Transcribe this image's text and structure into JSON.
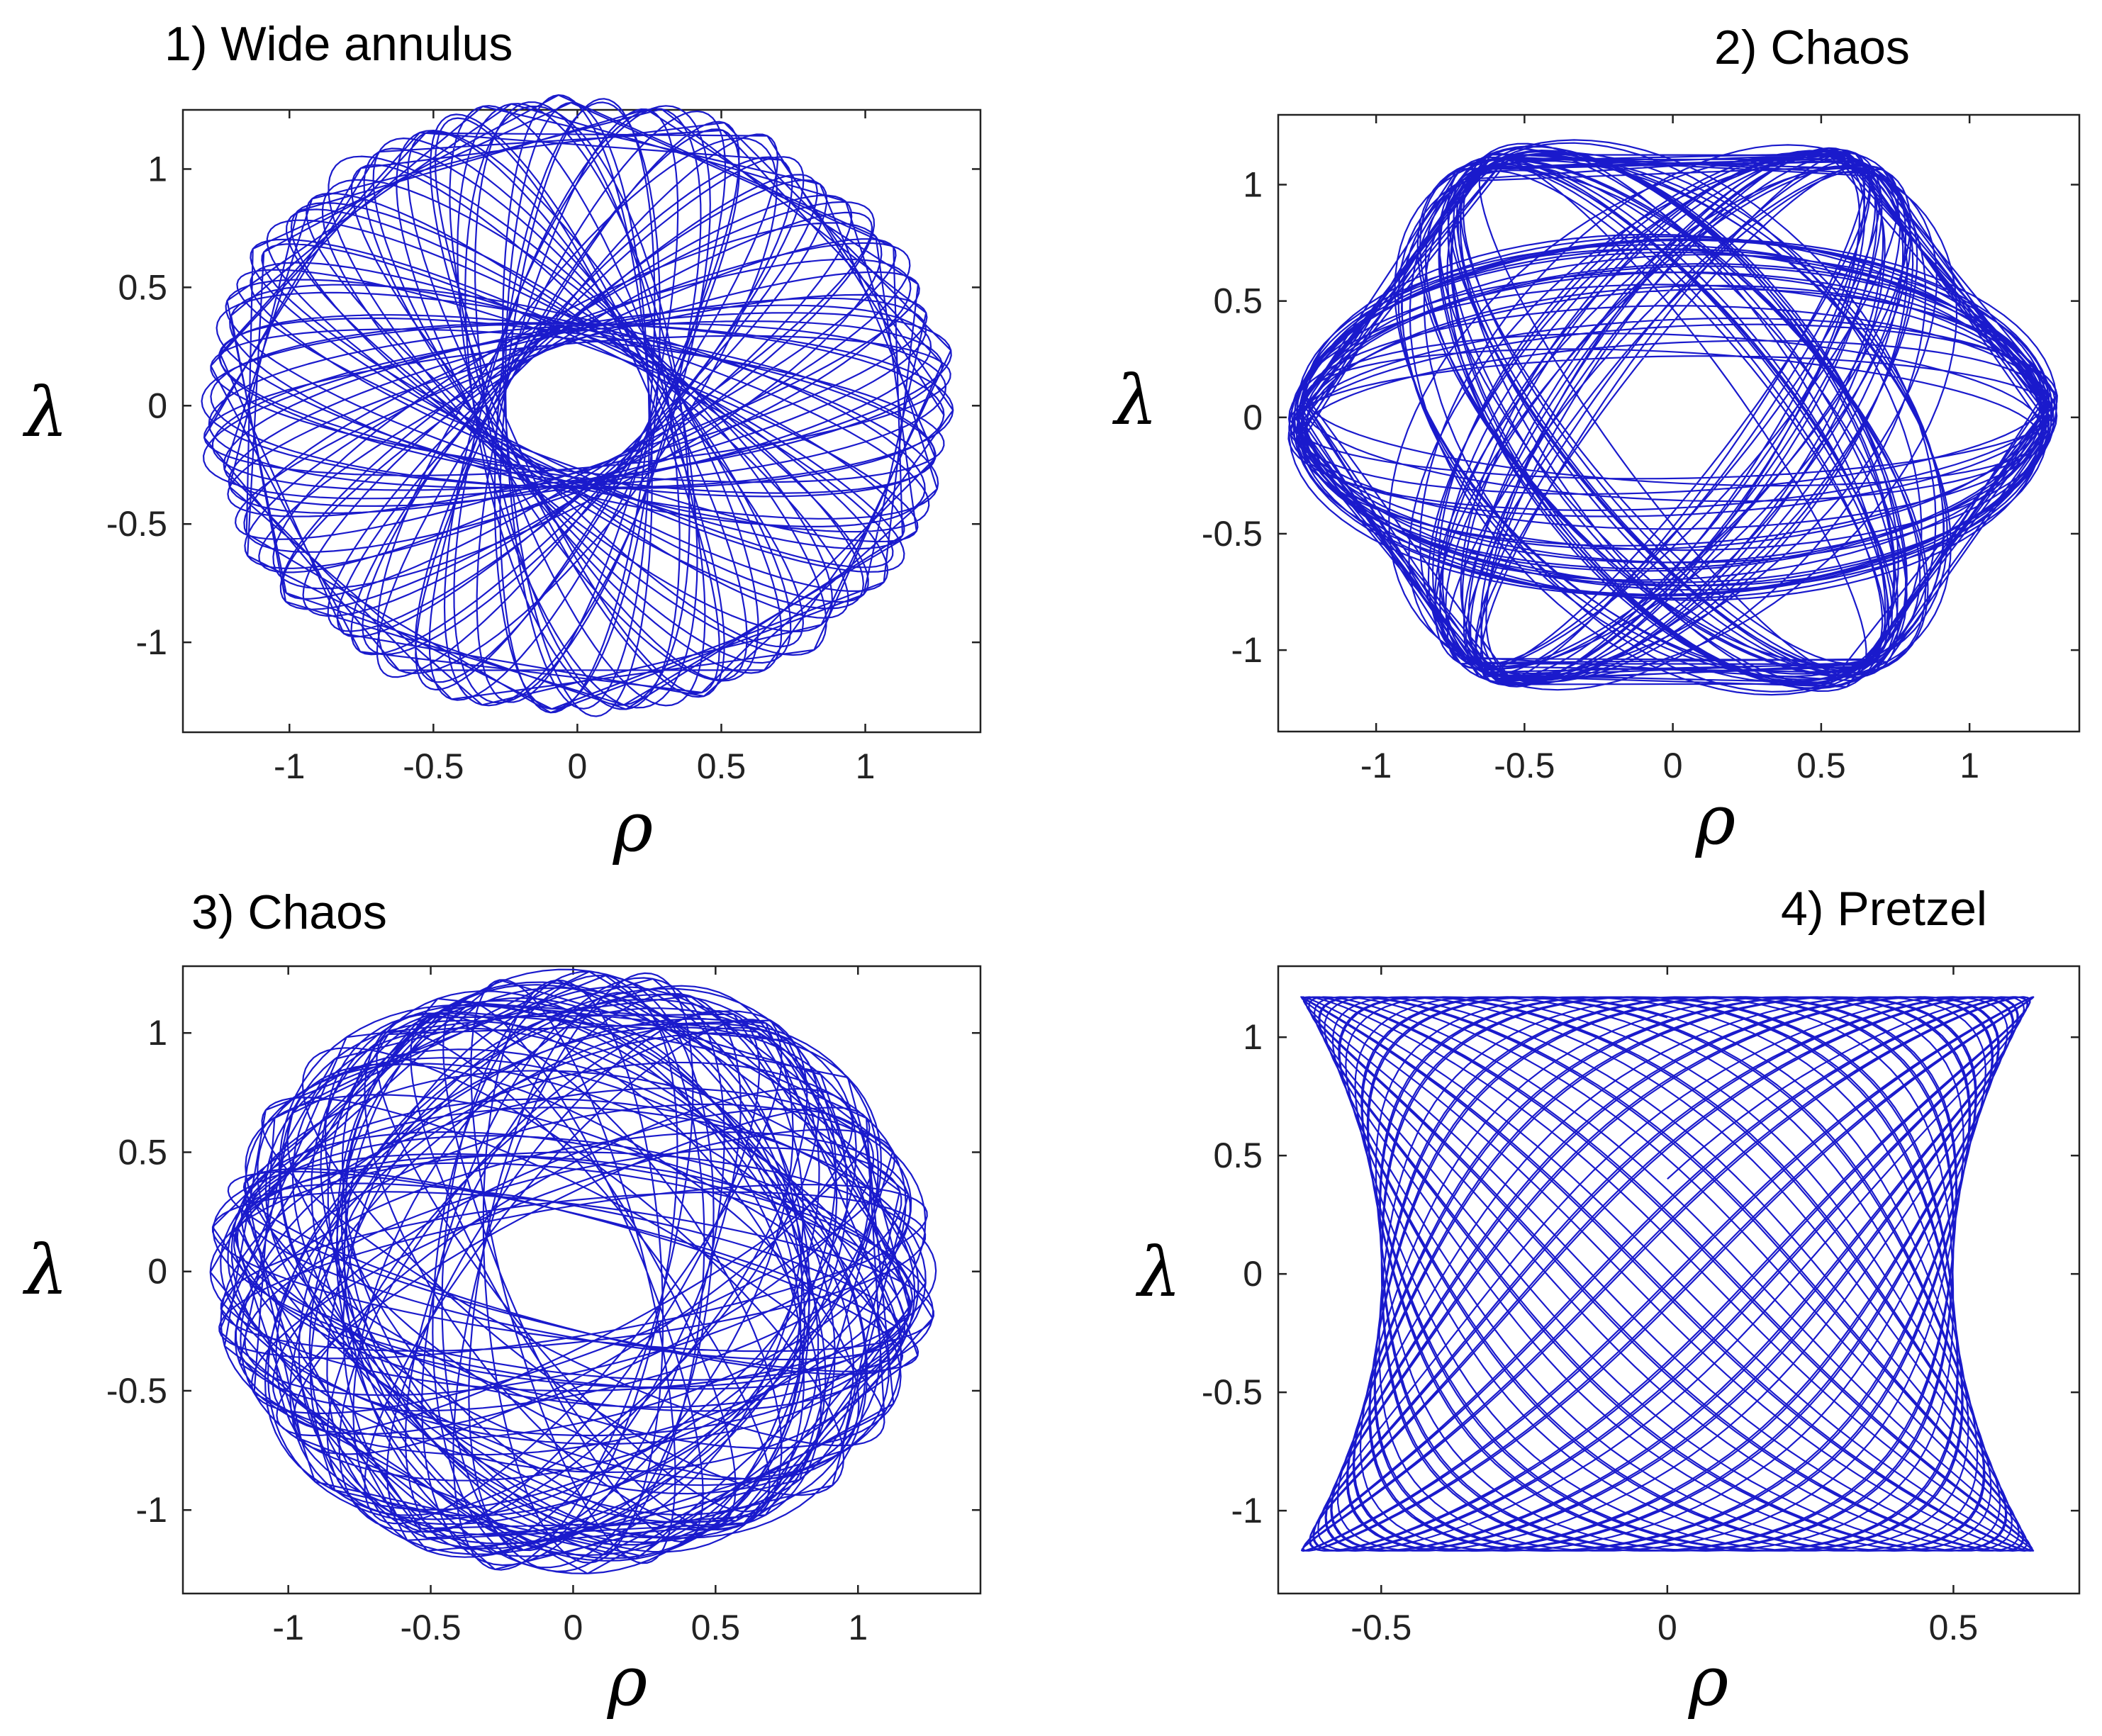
{
  "colors": {
    "trajectory": "#1a1acc",
    "axes": "#222222",
    "background": "#ffffff"
  },
  "chart_data": [
    {
      "type": "line",
      "title": "1) Wide annulus",
      "xlabel": "ρ",
      "ylabel": "λ",
      "xlim": [
        -1.37,
        1.4
      ],
      "ylim": [
        -1.38,
        1.25
      ],
      "xticks": [
        -1,
        -0.5,
        0,
        0.5,
        1
      ],
      "xtick_labels": [
        "-1",
        "-0.5",
        "0",
        "0.5",
        "1"
      ],
      "yticks": [
        -1,
        -0.5,
        0,
        0.5,
        1
      ],
      "ytick_labels": [
        "-1",
        "-0.5",
        "0",
        "0.5",
        "1"
      ],
      "grid": false,
      "series": [
        {
          "kind": "rotating-ellipse",
          "a": 1.32,
          "b": 0.3,
          "orientation_deg": 0,
          "precession_deg_per_loop": 58,
          "loops": 60,
          "points_per_loop": 90,
          "dense_thickness": 0.012
        }
      ]
    },
    {
      "type": "line",
      "title": "2) Chaos",
      "xlabel": "ρ",
      "ylabel": "λ",
      "xlim": [
        -1.33,
        1.37
      ],
      "ylim": [
        -1.35,
        1.3
      ],
      "xticks": [
        -1,
        -0.5,
        0,
        0.5,
        1
      ],
      "xtick_labels": [
        "-1",
        "-0.5",
        "0",
        "0.5",
        "1"
      ],
      "yticks": [
        -1,
        -0.5,
        0,
        0.5,
        1
      ],
      "ytick_labels": [
        "-1",
        "-0.5",
        "0",
        "0.5",
        "1"
      ],
      "grid": false,
      "series": [
        {
          "kind": "rotating-ellipse",
          "a": 1.3,
          "b": 0.42,
          "orientation_deg": 0,
          "precession_deg_per_loop": 60,
          "loops": 72,
          "points_per_loop": 90,
          "jitter": 0.09
        }
      ]
    },
    {
      "type": "line",
      "title": "3) Chaos",
      "xlabel": "ρ",
      "ylabel": "λ",
      "xlim": [
        -1.37,
        1.43
      ],
      "ylim": [
        -1.35,
        1.28
      ],
      "xticks": [
        -1,
        -0.5,
        0,
        0.5,
        1
      ],
      "xtick_labels": [
        "-1",
        "-0.5",
        "0",
        "0.5",
        "1"
      ],
      "yticks": [
        -1,
        -0.5,
        0,
        0.5,
        1
      ],
      "ytick_labels": [
        "-1",
        "-0.5",
        "0",
        "0.5",
        "1"
      ],
      "grid": false,
      "series": [
        {
          "kind": "rotating-ellipse",
          "a": 1.28,
          "b": 0.45,
          "orientation_deg": 0,
          "precession_deg_per_loop": 59,
          "loops": 70,
          "points_per_loop": 90,
          "jitter": 0.14
        }
      ]
    },
    {
      "type": "line",
      "title": "4) Pretzel",
      "xlabel": "ρ",
      "ylabel": "λ",
      "xlim": [
        -0.68,
        0.72
      ],
      "ylim": [
        -1.35,
        1.3
      ],
      "xticks": [
        -0.5,
        0,
        0.5
      ],
      "xtick_labels": [
        "-0.5",
        "0",
        "0.5"
      ],
      "yticks": [
        -1,
        -0.5,
        0,
        0.5,
        1
      ],
      "ytick_labels": [
        "-1",
        "-0.5",
        "0",
        "0.5",
        "1"
      ],
      "grid": false,
      "series": [
        {
          "kind": "lissajous",
          "ax": 0.64,
          "ay": 1.17,
          "fx": 1.0,
          "fy": 1.047,
          "phase": 0.35,
          "periods": 48,
          "samples": 5000,
          "waist": 0.22
        }
      ]
    }
  ]
}
